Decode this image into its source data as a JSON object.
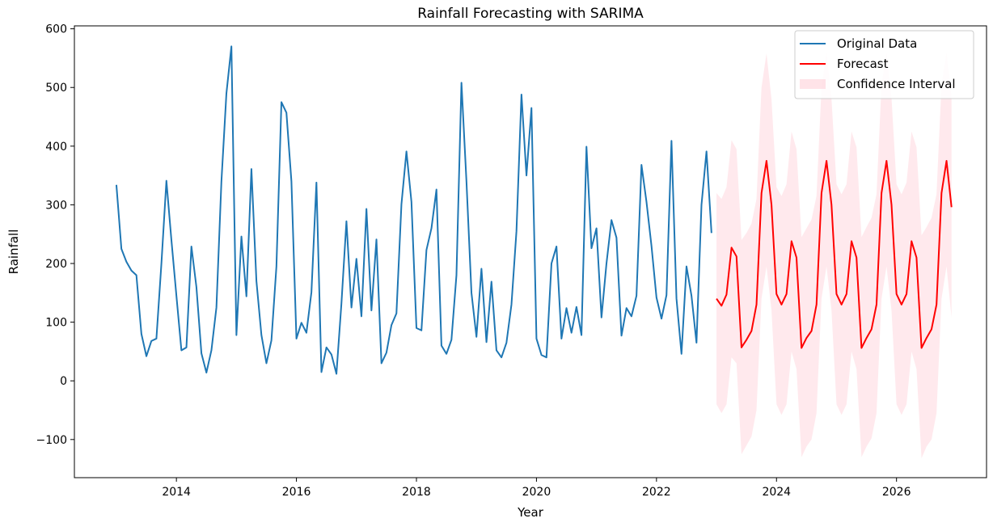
{
  "chart_data": {
    "type": "line",
    "title": "Rainfall Forecasting with SARIMA",
    "xlabel": "Year",
    "ylabel": "Rainfall",
    "xlim": [
      2012.3,
      2027.5
    ],
    "ylim": [
      -165,
      605
    ],
    "x_ticks": [
      2014,
      2016,
      2018,
      2020,
      2022,
      2024,
      2026
    ],
    "x_tick_labels": [
      "2014",
      "2016",
      "2018",
      "2020",
      "2022",
      "2024",
      "2026"
    ],
    "y_ticks": [
      -100,
      0,
      100,
      200,
      300,
      400,
      500,
      600
    ],
    "y_tick_labels": [
      "−100",
      "0",
      "100",
      "200",
      "300",
      "400",
      "500",
      "600"
    ],
    "grid": false,
    "legend_position": "top-right",
    "colors": {
      "original": "#1f77b4",
      "forecast": "#ff0000",
      "confidence": "#ffc0cb"
    },
    "series": [
      {
        "name": "Original Data",
        "start": "2013-01",
        "frequency": "monthly",
        "values": [
          334,
          225,
          203,
          188,
          180,
          80,
          42,
          68,
          72,
          200,
          341,
          240,
          145,
          52,
          57,
          229,
          160,
          47,
          14,
          52,
          125,
          340,
          490,
          570,
          78,
          246,
          144,
          361,
          170,
          78,
          30,
          69,
          195,
          475,
          457,
          340,
          72,
          99,
          82,
          151,
          338,
          15,
          57,
          45,
          12,
          132,
          272,
          125,
          208,
          110,
          293,
          120,
          241,
          30,
          48,
          95,
          115,
          301,
          391,
          305,
          90,
          86,
          223,
          260,
          326,
          60,
          46,
          70,
          180,
          508,
          340,
          150,
          75,
          191,
          66,
          169,
          52,
          40,
          65,
          130,
          255,
          488,
          350,
          465,
          72,
          44,
          40,
          200,
          229,
          72,
          124,
          82,
          126,
          78,
          399,
          226,
          260,
          108,
          200,
          274,
          244,
          77,
          124,
          110,
          145,
          368,
          305,
          230,
          142,
          106,
          146,
          409,
          140,
          46,
          195,
          145,
          65,
          300,
          391,
          252
        ]
      },
      {
        "name": "Forecast",
        "start": "2023-01",
        "frequency": "monthly",
        "values": [
          140,
          128,
          147,
          227,
          212,
          57,
          70,
          85,
          130,
          320,
          375,
          300,
          148,
          130,
          148,
          238,
          210,
          56,
          73,
          85,
          130,
          320,
          375,
          300,
          148,
          130,
          148,
          238,
          210,
          56,
          73,
          88,
          130,
          320,
          375,
          300,
          148,
          130,
          148,
          238,
          210,
          56,
          73,
          88,
          130,
          320,
          375,
          296
        ]
      },
      {
        "name": "Confidence Interval",
        "start": "2023-01",
        "frequency": "monthly",
        "lower": [
          -40,
          -55,
          -40,
          40,
          30,
          -125,
          -110,
          -95,
          -50,
          140,
          195,
          120,
          -40,
          -58,
          -40,
          50,
          20,
          -130,
          -112,
          -100,
          -55,
          140,
          195,
          120,
          -40,
          -58,
          -40,
          50,
          20,
          -130,
          -112,
          -98,
          -55,
          140,
          195,
          120,
          -40,
          -58,
          -40,
          50,
          20,
          -132,
          -112,
          -100,
          -55,
          140,
          195,
          108
        ],
        "upper": [
          320,
          310,
          330,
          410,
          395,
          240,
          252,
          268,
          310,
          500,
          558,
          480,
          330,
          315,
          335,
          425,
          395,
          245,
          260,
          275,
          315,
          500,
          560,
          480,
          335,
          318,
          335,
          425,
          398,
          245,
          262,
          278,
          318,
          505,
          560,
          482,
          335,
          318,
          338,
          425,
          398,
          248,
          262,
          278,
          318,
          505,
          560,
          484
        ]
      }
    ]
  }
}
